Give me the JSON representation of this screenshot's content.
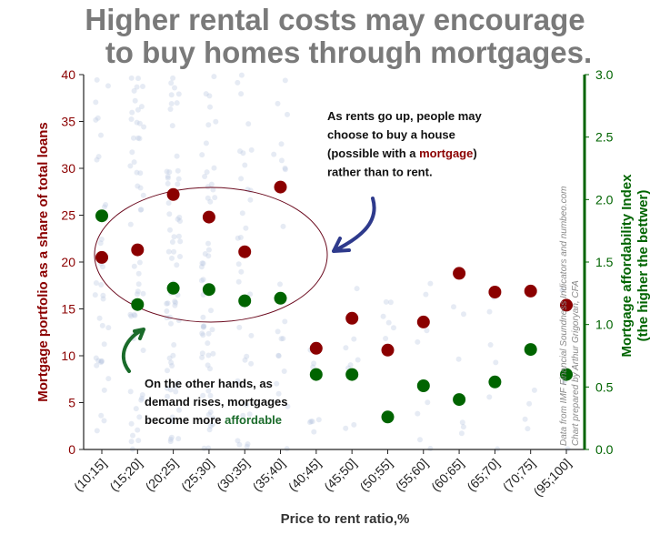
{
  "chart_data": {
    "type": "scatter",
    "title": [
      "Higher rental costs may encourage",
      "to buy homes through mortgages."
    ],
    "xlabel": "Price to rent ratio,%",
    "ylabel_left": "Mortgage portfolio as a share of total loans",
    "ylabel_right": [
      "Mortgage affordability Index",
      "(the higher the bettwer)"
    ],
    "categories": [
      "(10;15]",
      "(15;20]",
      "(20;25]",
      "(25;30]",
      "(30;35]",
      "(35;40]",
      "(40;45]",
      "(45;50]",
      "(50;55]",
      "(55;60]",
      "(60;65]",
      "(65;70]",
      "(70;75]",
      "(95;100]"
    ],
    "y_left_lim": [
      0,
      40
    ],
    "y_left_ticks": [
      0,
      5,
      10,
      15,
      20,
      25,
      30,
      35,
      40
    ],
    "y_right_lim": [
      0,
      3.0
    ],
    "y_right_ticks": [
      "0.0",
      "0.5",
      "1.0",
      "1.5",
      "2.0",
      "2.5",
      "3.0"
    ],
    "grid": false,
    "series": [
      {
        "name": "Mortgage portfolio",
        "axis": "left",
        "color": "#8b0000",
        "values": [
          20.5,
          21.3,
          27.2,
          24.8,
          21.1,
          28.0,
          10.8,
          14.0,
          10.6,
          13.6,
          18.8,
          16.8,
          16.9,
          15.4
        ]
      },
      {
        "name": "Mortgage affordability Index",
        "axis": "right",
        "color": "#006400",
        "values": [
          1.87,
          1.16,
          1.29,
          1.28,
          1.19,
          1.21,
          0.6,
          0.6,
          0.26,
          0.51,
          0.4,
          0.54,
          0.8,
          0.6
        ]
      }
    ],
    "annotations": {
      "top": [
        {
          "t": "As rents go up, people may"
        },
        {
          "t": "choose to buy a house"
        },
        {
          "t": "(possible with a ",
          "hl": "mortgage",
          "end": ")"
        },
        {
          "t": "rather than to rent."
        }
      ],
      "bottom": [
        {
          "t": "On the other hands, as"
        },
        {
          "t": "demand rises, mortgages"
        },
        {
          "t": "become more ",
          "hl": "affordable",
          "end": ""
        }
      ],
      "source": [
        "Data from IMF Financial Soundness Indicators and numbeo.com",
        "Chart prepared by Arthur Grigoryan, CFA"
      ]
    },
    "colors": {
      "left_axis": "#8b0000",
      "right_axis": "#006400",
      "highlight_red": "#8b0000",
      "highlight_green": "#1a6b2a",
      "arrow": "#2e3a8c",
      "arrow_green": "#1a6b2a",
      "cloud": "#b8c6e0"
    }
  }
}
